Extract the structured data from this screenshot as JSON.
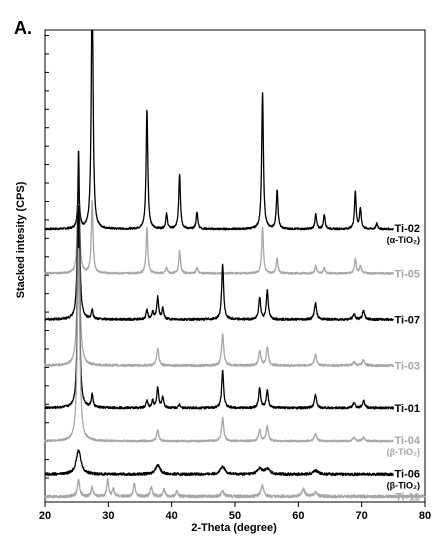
{
  "panel_label": "A.",
  "chart_data": {
    "type": "line",
    "title": "",
    "xlabel": "2-Theta (degree)",
    "ylabel": "Stacked intesity (CPS)",
    "xlim": [
      20,
      80
    ],
    "xticks": [
      20,
      30,
      40,
      50,
      60,
      70,
      80
    ],
    "xtick_labels": [
      "20",
      "30",
      "40",
      "50",
      "60",
      "70",
      "80"
    ],
    "grid": false,
    "legend": "labels at right end of each trace",
    "colors": {
      "black": "#000000",
      "gray": "#a6a6a6"
    },
    "series": [
      {
        "name": "Ti-02",
        "subtitle": "(α-TiO₂)",
        "color": "black",
        "baseline": 14.5,
        "noise": 0.05,
        "data_range": [
          20,
          75
        ],
        "peaks": [
          [
            25.3,
            2.3,
            0.18
          ],
          [
            27.45,
            14.4,
            0.16
          ],
          [
            36.1,
            6.5,
            0.16
          ],
          [
            39.2,
            0.8,
            0.16
          ],
          [
            41.25,
            3.0,
            0.16
          ],
          [
            44.0,
            0.9,
            0.16
          ],
          [
            54.35,
            7.4,
            0.16
          ],
          [
            56.65,
            2.1,
            0.16
          ],
          [
            62.75,
            0.8,
            0.16
          ],
          [
            64.1,
            0.8,
            0.16
          ],
          [
            69.0,
            2.0,
            0.16
          ],
          [
            69.8,
            1.1,
            0.16
          ],
          [
            72.4,
            0.3,
            0.16
          ]
        ]
      },
      {
        "name": "Ti-05",
        "subtitle": "",
        "color": "gray",
        "baseline": 12.1,
        "noise": 0.05,
        "data_range": [
          20,
          75
        ],
        "peaks": [
          [
            25.3,
            5.3,
            0.18
          ],
          [
            27.45,
            3.9,
            0.16
          ],
          [
            36.1,
            2.5,
            0.16
          ],
          [
            39.2,
            0.3,
            0.16
          ],
          [
            41.25,
            1.2,
            0.16
          ],
          [
            44.0,
            0.3,
            0.16
          ],
          [
            54.35,
            2.5,
            0.16
          ],
          [
            56.65,
            0.8,
            0.16
          ],
          [
            62.75,
            0.4,
            0.16
          ],
          [
            64.1,
            0.3,
            0.16
          ],
          [
            69.0,
            0.8,
            0.16
          ],
          [
            69.8,
            0.4,
            0.16
          ]
        ]
      },
      {
        "name": "Ti-07",
        "subtitle": "",
        "color": "black",
        "baseline": 9.6,
        "noise": 0.06,
        "data_range": [
          20,
          75
        ],
        "peaks": [
          [
            25.3,
            9.2,
            0.18
          ],
          [
            27.45,
            0.5,
            0.16
          ],
          [
            36.1,
            0.5,
            0.16
          ],
          [
            37.0,
            0.4,
            0.16
          ],
          [
            37.8,
            1.2,
            0.18
          ],
          [
            38.6,
            0.6,
            0.16
          ],
          [
            48.05,
            3.0,
            0.18
          ],
          [
            53.9,
            1.2,
            0.18
          ],
          [
            55.1,
            1.6,
            0.18
          ],
          [
            62.7,
            0.9,
            0.2
          ],
          [
            68.8,
            0.3,
            0.2
          ],
          [
            70.3,
            0.5,
            0.2
          ]
        ]
      },
      {
        "name": "Ti-03",
        "subtitle": "",
        "color": "gray",
        "baseline": 7.1,
        "noise": 0.06,
        "data_range": [
          20,
          75
        ],
        "peaks": [
          [
            25.3,
            8.8,
            0.22
          ],
          [
            37.8,
            0.9,
            0.2
          ],
          [
            48.05,
            1.7,
            0.2
          ],
          [
            53.9,
            0.8,
            0.2
          ],
          [
            55.1,
            1.0,
            0.2
          ],
          [
            62.7,
            0.6,
            0.22
          ],
          [
            68.8,
            0.2,
            0.22
          ],
          [
            70.3,
            0.3,
            0.22
          ]
        ]
      },
      {
        "name": "Ti-01",
        "subtitle": "",
        "color": "black",
        "baseline": 4.8,
        "noise": 0.06,
        "data_range": [
          20,
          75
        ],
        "peaks": [
          [
            25.3,
            11.1,
            0.18
          ],
          [
            27.45,
            0.7,
            0.16
          ],
          [
            36.1,
            0.4,
            0.16
          ],
          [
            37.0,
            0.4,
            0.16
          ],
          [
            37.8,
            1.1,
            0.18
          ],
          [
            38.6,
            0.6,
            0.16
          ],
          [
            41.25,
            0.2,
            0.16
          ],
          [
            48.05,
            2.1,
            0.18
          ],
          [
            53.9,
            1.1,
            0.18
          ],
          [
            55.1,
            1.0,
            0.18
          ],
          [
            62.7,
            0.7,
            0.2
          ],
          [
            68.8,
            0.3,
            0.2
          ],
          [
            70.3,
            0.4,
            0.2
          ]
        ]
      },
      {
        "name": "Ti-04",
        "subtitle": "(β-TiO₂)",
        "color": "gray",
        "baseline": 3.0,
        "noise": 0.05,
        "data_range": [
          20,
          75
        ],
        "peaks": [
          [
            25.3,
            10.5,
            0.22
          ],
          [
            37.8,
            0.6,
            0.2
          ],
          [
            48.05,
            1.3,
            0.2
          ],
          [
            53.9,
            0.6,
            0.2
          ],
          [
            55.1,
            0.8,
            0.2
          ],
          [
            62.7,
            0.4,
            0.22
          ],
          [
            68.8,
            0.2,
            0.22
          ],
          [
            70.3,
            0.2,
            0.22
          ]
        ]
      },
      {
        "name": "Ti-06",
        "subtitle": "(β-TiO₂)",
        "color": "black",
        "baseline": 1.2,
        "noise": 0.07,
        "data_range": [
          20,
          75
        ],
        "peaks": [
          [
            25.3,
            1.3,
            0.45
          ],
          [
            37.8,
            0.5,
            0.45
          ],
          [
            48.05,
            0.4,
            0.45
          ],
          [
            53.9,
            0.3,
            0.45
          ],
          [
            55.1,
            0.3,
            0.45
          ],
          [
            62.7,
            0.2,
            0.5
          ]
        ]
      },
      {
        "name": "Ti-11",
        "subtitle": "",
        "color": "gray",
        "baseline": 0.0,
        "noise": 0.08,
        "data_range": [
          20,
          80
        ],
        "peaks": [
          [
            25.3,
            0.9,
            0.22
          ],
          [
            27.45,
            0.5,
            0.18
          ],
          [
            29.9,
            0.9,
            0.18
          ],
          [
            30.8,
            0.4,
            0.18
          ],
          [
            34.1,
            0.7,
            0.2
          ],
          [
            36.8,
            0.5,
            0.2
          ],
          [
            38.8,
            0.4,
            0.2
          ],
          [
            40.8,
            0.3,
            0.2
          ],
          [
            48.05,
            0.3,
            0.25
          ],
          [
            54.3,
            0.6,
            0.25
          ],
          [
            60.8,
            0.4,
            0.3
          ],
          [
            62.7,
            0.2,
            0.3
          ]
        ]
      }
    ]
  }
}
